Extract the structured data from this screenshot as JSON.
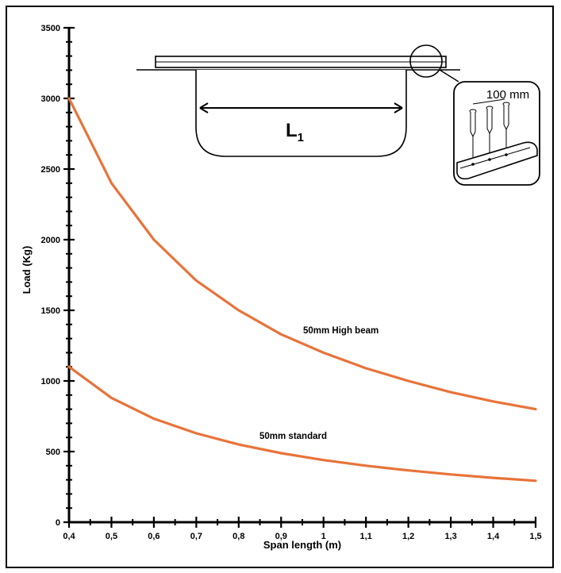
{
  "chart_data": {
    "type": "line",
    "title": "",
    "xlabel": "Span length (m)",
    "ylabel": "Load (Kg)",
    "xlim": [
      0.4,
      1.5
    ],
    "ylim": [
      0,
      3500
    ],
    "x_ticks": [
      "0,4",
      "0,5",
      "0,6",
      "0,7",
      "0,8",
      "0,9",
      "1",
      "1,1",
      "1,2",
      "1,3",
      "1,4",
      "1,5"
    ],
    "y_ticks": [
      "0",
      "500",
      "1000",
      "1500",
      "2000",
      "2500",
      "3000",
      "3500"
    ],
    "grid": false,
    "line_color": "#e8733a",
    "series": [
      {
        "name": "50mm High beam",
        "x": [
          0.4,
          0.5,
          0.6,
          0.7,
          0.8,
          0.9,
          1.0,
          1.1,
          1.2,
          1.3,
          1.4,
          1.5
        ],
        "values": [
          3000,
          2400,
          2000,
          1710,
          1500,
          1330,
          1200,
          1090,
          1000,
          920,
          855,
          800
        ]
      },
      {
        "name": "50mm standard",
        "x": [
          0.4,
          0.5,
          0.6,
          0.7,
          0.8,
          0.9,
          1.0,
          1.1,
          1.2,
          1.3,
          1.4,
          1.5
        ],
        "values": [
          1100,
          880,
          733,
          629,
          550,
          489,
          440,
          400,
          367,
          338,
          314,
          293
        ]
      }
    ]
  },
  "inset": {
    "span_label_main": "L",
    "span_label_sub": "1",
    "spacing_label": "100 mm"
  }
}
